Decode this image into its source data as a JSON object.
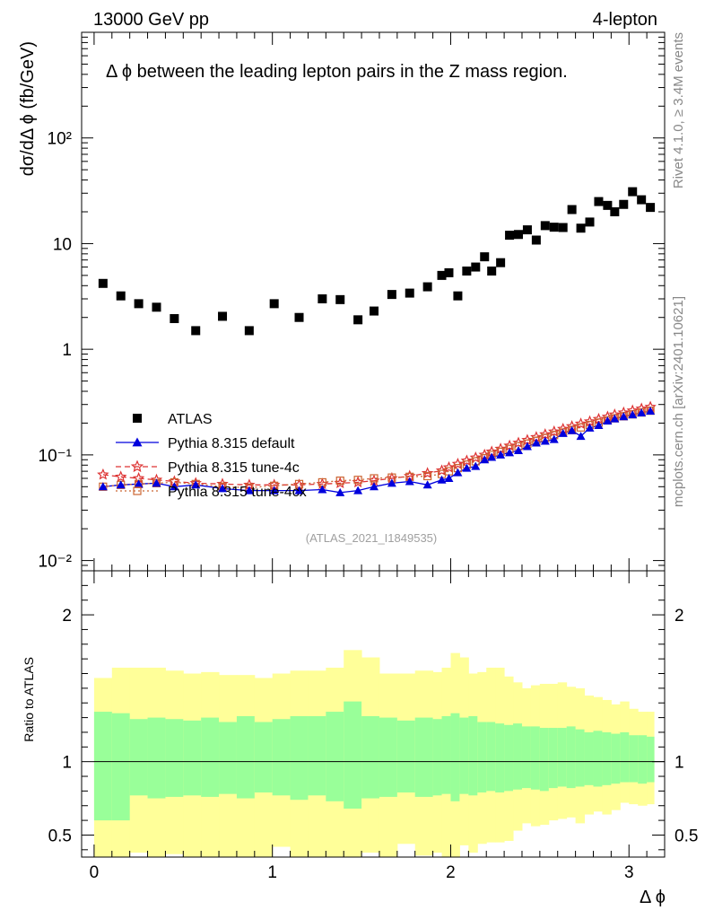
{
  "header": {
    "left": "13000 GeV pp",
    "right": "4-lepton"
  },
  "side_labels": {
    "rivet": "Rivet 4.1.0, ≥ 3.4M events",
    "mcplots": "mcplots.cern.ch [arXiv:2401.10621]"
  },
  "colors": {
    "atlas": "#000000",
    "default": "#0000dd",
    "tune4c": "#dd3333",
    "tune4cx": "#cc6633",
    "band_inner": "#99ff99",
    "band_outer": "#ffff99"
  },
  "chart_data": [
    {
      "type": "scatter",
      "scale": "log",
      "title": "Δ ϕ between the leading lepton pairs in the Z mass region.",
      "ylabel": "dσ/dΔ ϕ (fb/GeV)",
      "xlim": [
        -0.07,
        3.2
      ],
      "ylim": [
        0.008,
        1000
      ],
      "yticks": [
        {
          "value": 0.01,
          "label": "10⁻²"
        },
        {
          "value": 0.1,
          "label": "10⁻¹"
        },
        {
          "value": 1,
          "label": "1"
        },
        {
          "value": 10,
          "label": "10"
        },
        {
          "value": 100,
          "label": "10²"
        }
      ],
      "watermark": "(ATLAS_2021_I1849535)",
      "legend": [
        {
          "key": "atlas",
          "label": "ATLAS"
        },
        {
          "key": "default",
          "label": "Pythia 8.315 default"
        },
        {
          "key": "tune4c",
          "label": "Pythia 8.315 tune-4c"
        },
        {
          "key": "tune4cx",
          "label": "Pythia 8.315 tune-4cx"
        }
      ],
      "x": [
        0.05,
        0.15,
        0.25,
        0.35,
        0.45,
        0.57,
        0.72,
        0.87,
        1.01,
        1.15,
        1.28,
        1.38,
        1.48,
        1.57,
        1.67,
        1.77,
        1.87,
        1.95,
        1.99,
        2.04,
        2.09,
        2.14,
        2.19,
        2.23,
        2.28,
        2.33,
        2.38,
        2.43,
        2.48,
        2.53,
        2.58,
        2.63,
        2.68,
        2.73,
        2.78,
        2.83,
        2.88,
        2.92,
        2.97,
        3.02,
        3.07,
        3.12
      ],
      "series": [
        {
          "name": "ATLAS",
          "values": [
            4.2,
            3.2,
            2.7,
            2.5,
            1.95,
            1.5,
            2.05,
            1.5,
            2.7,
            2.0,
            3.0,
            2.95,
            1.9,
            2.3,
            3.3,
            3.4,
            3.9,
            5.0,
            5.3,
            3.2,
            5.5,
            6.0,
            7.5,
            5.5,
            6.6,
            12,
            12.2,
            13.5,
            10.8,
            14.8,
            14.3,
            14.2,
            21,
            14,
            16,
            25,
            23,
            20,
            23.5,
            31,
            26,
            22
          ]
        },
        {
          "name": "Pythia 8.315 default",
          "values": [
            0.05,
            0.052,
            0.053,
            0.054,
            0.05,
            0.052,
            0.048,
            0.046,
            0.046,
            0.046,
            0.047,
            0.044,
            0.046,
            0.05,
            0.054,
            0.056,
            0.052,
            0.058,
            0.06,
            0.068,
            0.075,
            0.078,
            0.09,
            0.095,
            0.1,
            0.105,
            0.11,
            0.12,
            0.13,
            0.135,
            0.14,
            0.16,
            0.17,
            0.15,
            0.18,
            0.19,
            0.21,
            0.22,
            0.23,
            0.24,
            0.25,
            0.26
          ]
        },
        {
          "name": "Pythia 8.315 tune-4c",
          "values": [
            0.065,
            0.062,
            0.06,
            0.058,
            0.056,
            0.054,
            0.053,
            0.052,
            0.052,
            0.052,
            0.053,
            0.054,
            0.055,
            0.057,
            0.06,
            0.063,
            0.067,
            0.071,
            0.076,
            0.082,
            0.088,
            0.094,
            0.1,
            0.107,
            0.114,
            0.122,
            0.13,
            0.138,
            0.147,
            0.156,
            0.166,
            0.176,
            0.186,
            0.197,
            0.207,
            0.218,
            0.229,
            0.24,
            0.251,
            0.262,
            0.273,
            0.284
          ]
        },
        {
          "name": "Pythia 8.315 tune-4cx",
          "values": [
            0.05,
            0.052,
            0.053,
            0.054,
            0.055,
            0.053,
            0.05,
            0.049,
            0.051,
            0.053,
            0.055,
            0.057,
            0.058,
            0.06,
            0.061,
            0.062,
            0.063,
            0.066,
            0.07,
            0.075,
            0.081,
            0.087,
            0.093,
            0.1,
            0.107,
            0.114,
            0.121,
            0.128,
            0.136,
            0.145,
            0.154,
            0.163,
            0.172,
            0.182,
            0.192,
            0.202,
            0.212,
            0.222,
            0.232,
            0.242,
            0.252,
            0.262
          ]
        }
      ]
    },
    {
      "type": "area",
      "ylabel": "Ratio to ATLAS",
      "xlabel": "Δ ϕ",
      "xlim": [
        -0.07,
        3.2
      ],
      "ylim": [
        0.35,
        2.3
      ],
      "xticks": [
        0,
        1,
        2,
        3
      ],
      "yticks": [
        0.5,
        1,
        2
      ],
      "bins": [
        0,
        0.1,
        0.2,
        0.3,
        0.4,
        0.5,
        0.6,
        0.7,
        0.8,
        0.9,
        1.0,
        1.1,
        1.2,
        1.3,
        1.4,
        1.5,
        1.6,
        1.7,
        1.8,
        1.9,
        1.95,
        2.0,
        2.05,
        2.1,
        2.15,
        2.2,
        2.25,
        2.3,
        2.35,
        2.4,
        2.45,
        2.5,
        2.55,
        2.6,
        2.65,
        2.7,
        2.75,
        2.8,
        2.85,
        2.9,
        2.95,
        3.0,
        3.05,
        3.1,
        3.14
      ],
      "inner_lo": [
        0.6,
        0.6,
        0.77,
        0.75,
        0.76,
        0.77,
        0.76,
        0.78,
        0.75,
        0.79,
        0.77,
        0.74,
        0.77,
        0.73,
        0.68,
        0.75,
        0.76,
        0.79,
        0.76,
        0.77,
        0.78,
        0.73,
        0.78,
        0.77,
        0.79,
        0.8,
        0.79,
        0.8,
        0.81,
        0.82,
        0.81,
        0.8,
        0.82,
        0.83,
        0.82,
        0.83,
        0.84,
        0.83,
        0.84,
        0.85,
        0.86,
        0.86,
        0.85,
        0.86
      ],
      "inner_hi": [
        1.34,
        1.33,
        1.29,
        1.3,
        1.29,
        1.28,
        1.3,
        1.27,
        1.31,
        1.27,
        1.29,
        1.31,
        1.31,
        1.34,
        1.41,
        1.31,
        1.3,
        1.28,
        1.3,
        1.29,
        1.31,
        1.33,
        1.3,
        1.31,
        1.27,
        1.27,
        1.26,
        1.25,
        1.26,
        1.24,
        1.24,
        1.23,
        1.23,
        1.23,
        1.24,
        1.22,
        1.2,
        1.21,
        1.2,
        1.19,
        1.2,
        1.18,
        1.18,
        1.17
      ],
      "outer_lo": [
        0.35,
        0.35,
        0.38,
        0.35,
        0.37,
        0.35,
        0.35,
        0.35,
        0.35,
        0.35,
        0.42,
        0.35,
        0.35,
        0.35,
        0.35,
        0.38,
        0.35,
        0.44,
        0.36,
        0.38,
        0.35,
        0.35,
        0.43,
        0.38,
        0.44,
        0.45,
        0.45,
        0.46,
        0.53,
        0.58,
        0.56,
        0.57,
        0.6,
        0.61,
        0.62,
        0.58,
        0.64,
        0.66,
        0.64,
        0.67,
        0.72,
        0.71,
        0.7,
        0.71
      ],
      "outer_hi": [
        1.57,
        1.64,
        1.64,
        1.64,
        1.62,
        1.6,
        1.61,
        1.59,
        1.59,
        1.57,
        1.6,
        1.62,
        1.62,
        1.64,
        1.76,
        1.71,
        1.6,
        1.6,
        1.62,
        1.61,
        1.64,
        1.74,
        1.71,
        1.6,
        1.61,
        1.64,
        1.64,
        1.58,
        1.54,
        1.5,
        1.52,
        1.53,
        1.53,
        1.54,
        1.51,
        1.5,
        1.45,
        1.44,
        1.42,
        1.39,
        1.41,
        1.36,
        1.34,
        1.34
      ],
      "reference": 1
    }
  ]
}
